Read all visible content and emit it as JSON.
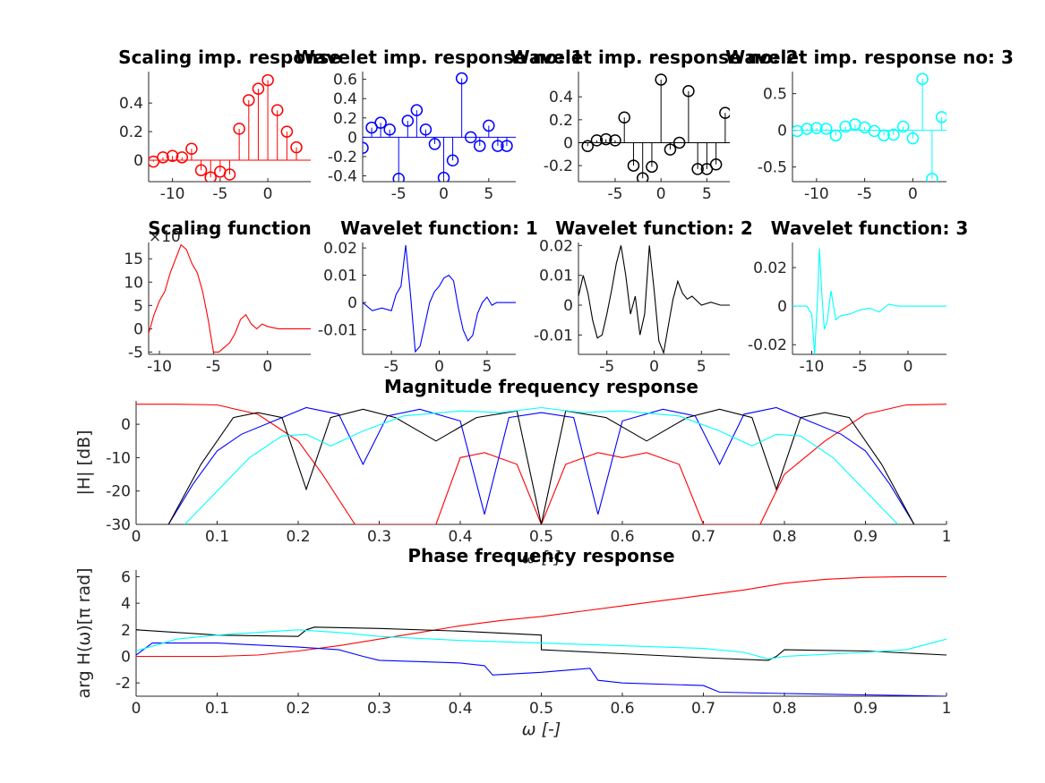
{
  "figure": {
    "background": "#ffffff",
    "colors": {
      "scaling": "#ff0000",
      "wavelet1": "#0000ff",
      "wavelet2": "#000000",
      "wavelet3": "#00ffff"
    }
  },
  "chart_data": [
    {
      "type": "stem",
      "title": "Scaling imp. response",
      "color": "#ff0000",
      "xlim": [
        -12.5,
        4.5
      ],
      "ylim": [
        -0.15,
        0.62
      ],
      "xticks": [
        -10,
        -5,
        0
      ],
      "xtick_labels": [
        "-10",
        "-5",
        "0"
      ],
      "yticks": [
        0,
        0.2,
        0.4
      ],
      "ytick_labels": [
        "0",
        "0.2",
        "0.4"
      ],
      "x": [
        -12,
        -11,
        -10,
        -9,
        -8,
        -7,
        -6,
        -5,
        -4,
        -3,
        -2,
        -1,
        0,
        1,
        2,
        3
      ],
      "y": [
        -0.01,
        0.02,
        0.03,
        0.02,
        0.08,
        -0.07,
        -0.12,
        -0.08,
        -0.1,
        0.22,
        0.42,
        0.5,
        0.56,
        0.35,
        0.2,
        0.09
      ]
    },
    {
      "type": "stem",
      "title": "Wavelet imp. response no: 1",
      "color": "#0000ff",
      "xlim": [
        -9,
        8
      ],
      "ylim": [
        -0.46,
        0.68
      ],
      "xticks": [
        -5,
        0,
        5
      ],
      "xtick_labels": [
        "-5",
        "0",
        "5"
      ],
      "yticks": [
        -0.4,
        -0.2,
        0,
        0.2,
        0.4,
        0.6
      ],
      "ytick_labels": [
        "-0.4",
        "-0.2",
        "0",
        "0.2",
        "0.4",
        "0.6"
      ],
      "x": [
        -9,
        -8,
        -7,
        -6,
        -5,
        -4,
        -3,
        -2,
        -1,
        0,
        1,
        2,
        3,
        4,
        5,
        6,
        7
      ],
      "y": [
        -0.11,
        0.1,
        0.15,
        0.08,
        -0.43,
        0.17,
        0.28,
        0.08,
        -0.07,
        -0.42,
        -0.24,
        0.61,
        0.0,
        -0.09,
        0.12,
        -0.09,
        -0.09
      ]
    },
    {
      "type": "stem",
      "title": "Wavelet imp. response no: 2",
      "color": "#000000",
      "xlim": [
        -9,
        7.5
      ],
      "ylim": [
        -0.34,
        0.62
      ],
      "xticks": [
        -5,
        0,
        5
      ],
      "xtick_labels": [
        "-5",
        "0",
        "5"
      ],
      "yticks": [
        -0.2,
        0,
        0.2,
        0.4
      ],
      "ytick_labels": [
        "-0.2",
        "0",
        "0.2",
        "0.4"
      ],
      "x": [
        -8,
        -7,
        -6,
        -5,
        -4,
        -3,
        -2,
        -1,
        0,
        1,
        2,
        3,
        4,
        5,
        6,
        7
      ],
      "y": [
        -0.03,
        0.02,
        0.03,
        0.02,
        0.22,
        -0.2,
        -0.31,
        -0.21,
        0.55,
        -0.06,
        0.0,
        0.45,
        -0.23,
        -0.23,
        -0.19,
        0.26
      ]
    },
    {
      "type": "stem",
      "title": "Wavelet imp. response no: 3",
      "color": "#00ffff",
      "xlim": [
        -12.5,
        3.5
      ],
      "ylim": [
        -0.7,
        0.8
      ],
      "xticks": [
        -10,
        -5,
        0
      ],
      "xtick_labels": [
        "-10",
        "-5",
        "0"
      ],
      "yticks": [
        -0.5,
        0,
        0.5
      ],
      "ytick_labels": [
        "-0.5",
        "0",
        "0.5"
      ],
      "x": [
        -12,
        -11,
        -10,
        -9,
        -8,
        -7,
        -6,
        -5,
        -4,
        -3,
        -2,
        -1,
        0,
        1,
        2,
        3
      ],
      "y": [
        -0.01,
        0.02,
        0.03,
        0.02,
        -0.07,
        0.05,
        0.08,
        0.04,
        -0.01,
        -0.07,
        -0.06,
        0.05,
        -0.11,
        0.7,
        -0.66,
        0.18
      ]
    },
    {
      "type": "line",
      "title": "Scaling function",
      "color": "#ff0000",
      "exponent_label": "×10",
      "exponent_power": "-3",
      "xlim": [
        -11,
        4
      ],
      "ylim": [
        -5.5,
        18.5
      ],
      "xticks": [
        -10,
        -5,
        0
      ],
      "xtick_labels": [
        "-10",
        "-5",
        "0"
      ],
      "yticks": [
        -5,
        0,
        5,
        10,
        15
      ],
      "ytick_labels": [
        "-5",
        "0",
        "5",
        "10",
        "15"
      ],
      "x": [
        -11,
        -10.5,
        -10,
        -9.5,
        -9,
        -8.5,
        -8,
        -7.5,
        -7,
        -6.5,
        -6,
        -5.5,
        -5,
        -4.5,
        -4,
        -3.5,
        -3,
        -2.5,
        -2,
        -1.5,
        -1,
        -0.5,
        0,
        1,
        2,
        3,
        4
      ],
      "y": [
        -1,
        3,
        6,
        8,
        12,
        15,
        18,
        17,
        14,
        12,
        8,
        2,
        -5,
        -5,
        -4,
        -3,
        -1,
        2,
        3,
        1,
        0,
        1,
        0.5,
        0,
        0,
        0,
        0
      ]
    },
    {
      "type": "line",
      "title": "Wavelet function: 1",
      "color": "#0000ff",
      "xlim": [
        -8,
        8
      ],
      "ylim": [
        -0.019,
        0.022
      ],
      "xticks": [
        -5,
        0,
        5
      ],
      "xtick_labels": [
        "-5",
        "0",
        "5"
      ],
      "yticks": [
        -0.01,
        0,
        0.01,
        0.02
      ],
      "ytick_labels": [
        "-0.01",
        "0",
        "0.01",
        "0.02"
      ],
      "x": [
        -8,
        -7,
        -6,
        -5,
        -4.5,
        -4,
        -3.5,
        -3,
        -2.5,
        -2,
        -1.5,
        -1,
        -0.5,
        0,
        0.5,
        1,
        1.5,
        2,
        2.5,
        3,
        3.5,
        4,
        4.5,
        5,
        5.5,
        6,
        7,
        8
      ],
      "y": [
        0,
        -0.003,
        -0.002,
        -0.003,
        0.003,
        0.006,
        0.021,
        0.003,
        -0.018,
        -0.016,
        -0.008,
        0,
        0.004,
        0.006,
        0.009,
        0.01,
        0.008,
        -0.002,
        -0.01,
        -0.014,
        -0.012,
        -0.004,
        0,
        0.002,
        -0.001,
        0,
        0,
        0
      ]
    },
    {
      "type": "line",
      "title": "Wavelet function: 2",
      "color": "#000000",
      "xlim": [
        -8,
        8
      ],
      "ylim": [
        -0.0165,
        0.021
      ],
      "xticks": [
        -5,
        0,
        5
      ],
      "xtick_labels": [
        "-5",
        "0",
        "5"
      ],
      "yticks": [
        -0.01,
        0,
        0.01,
        0.02
      ],
      "ytick_labels": [
        "-0.01",
        "0",
        "0.01",
        "0.02"
      ],
      "x": [
        -8,
        -7.5,
        -7,
        -6.5,
        -6,
        -5.5,
        -5,
        -4.5,
        -4,
        -3.5,
        -3,
        -2.5,
        -2,
        -1.5,
        -1,
        -0.5,
        0,
        0.5,
        1,
        1.5,
        2,
        2.5,
        3,
        3.5,
        4,
        5,
        6,
        7,
        8
      ],
      "y": [
        0.003,
        0.01,
        0.004,
        -0.005,
        -0.011,
        -0.01,
        -0.003,
        0.005,
        0.014,
        0.02,
        0.01,
        -0.003,
        0.003,
        -0.01,
        -0.003,
        0.02,
        0.005,
        -0.012,
        -0.016,
        -0.007,
        0.002,
        0.008,
        0.004,
        0.002,
        0.003,
        0,
        0.001,
        0,
        0
      ]
    },
    {
      "type": "line",
      "title": "Wavelet function: 3",
      "color": "#00ffff",
      "xlim": [
        -12,
        4
      ],
      "ylim": [
        -0.025,
        0.033
      ],
      "xticks": [
        -10,
        -5,
        0
      ],
      "xtick_labels": [
        "-10",
        "-5",
        "0"
      ],
      "yticks": [
        -0.02,
        0,
        0.02
      ],
      "ytick_labels": [
        "-0.02",
        "0",
        "0.02"
      ],
      "x": [
        -12,
        -11,
        -10.5,
        -10,
        -9.7,
        -9.4,
        -9.2,
        -9,
        -8.7,
        -8.4,
        -8,
        -7.5,
        -7,
        -6,
        -5,
        -4,
        -3,
        -2,
        -1,
        0,
        1,
        2,
        3,
        4
      ],
      "y": [
        0,
        0,
        0,
        -0.004,
        -0.025,
        0.004,
        0.03,
        0.01,
        -0.012,
        -0.008,
        0.008,
        -0.007,
        -0.005,
        -0.004,
        -0.002,
        -0.001,
        -0.003,
        0.001,
        0,
        0,
        0,
        0,
        0,
        0
      ]
    },
    {
      "type": "line",
      "title": "Magnitude frequency response",
      "xlabel": "ω [-]",
      "ylabel": "|H| [dB]",
      "xlim": [
        0,
        1
      ],
      "ylim": [
        -30,
        7
      ],
      "xticks": [
        0,
        0.1,
        0.2,
        0.3,
        0.4,
        0.5,
        0.6,
        0.7,
        0.8,
        0.9,
        1
      ],
      "xtick_labels": [
        "0",
        "0.1",
        "0.2",
        "0.3",
        "0.4",
        "0.5",
        "0.6",
        "0.7",
        "0.8",
        "0.9",
        "1"
      ],
      "yticks": [
        -30,
        -20,
        -10,
        0
      ],
      "ytick_labels": [
        "-30",
        "-20",
        "-10",
        "0"
      ],
      "series": [
        {
          "color": "#ff0000",
          "x": [
            0,
            0.05,
            0.1,
            0.15,
            0.2,
            0.23,
            0.27,
            0.3,
            0.33,
            0.37,
            0.4,
            0.43,
            0.47,
            0.5,
            0.53,
            0.57,
            0.6,
            0.63,
            0.67,
            0.7,
            0.73,
            0.77,
            0.8,
            0.85,
            0.9,
            0.95,
            1
          ],
          "y": [
            6,
            6,
            5.8,
            3,
            -5,
            -15,
            -30,
            -30,
            -30,
            -30,
            -10,
            -8.5,
            -12,
            -30,
            -12,
            -8.5,
            -10,
            -8.5,
            -12,
            -30,
            -30,
            -30,
            -15,
            -5,
            3,
            5.8,
            6
          ]
        },
        {
          "color": "#0000ff",
          "x": [
            0.04,
            0.07,
            0.1,
            0.13,
            0.17,
            0.21,
            0.25,
            0.28,
            0.31,
            0.35,
            0.4,
            0.43,
            0.46,
            0.5,
            0.54,
            0.57,
            0.6,
            0.65,
            0.69,
            0.72,
            0.75,
            0.79,
            0.83,
            0.87,
            0.9,
            0.93,
            0.96
          ],
          "y": [
            -30,
            -18,
            -8,
            -3,
            1,
            5,
            3,
            -12,
            2.5,
            4.5,
            1,
            -27,
            2,
            3.5,
            2,
            -27,
            1,
            4.5,
            2.5,
            -12,
            3,
            5,
            1,
            -3,
            -8,
            -18,
            -30
          ]
        },
        {
          "color": "#000000",
          "x": [
            0.04,
            0.08,
            0.12,
            0.15,
            0.18,
            0.21,
            0.24,
            0.28,
            0.32,
            0.37,
            0.42,
            0.47,
            0.5,
            0.53,
            0.58,
            0.63,
            0.68,
            0.72,
            0.76,
            0.79,
            0.82,
            0.85,
            0.88,
            0.92,
            0.96
          ],
          "y": [
            -30,
            -12,
            2,
            3.5,
            2,
            -19.5,
            2,
            4.5,
            2,
            -5,
            2,
            4,
            -30,
            4,
            2,
            -5,
            2,
            4.5,
            2,
            -19.5,
            2,
            3.5,
            2,
            -12,
            -30
          ]
        },
        {
          "color": "#00ffff",
          "x": [
            0.06,
            0.1,
            0.14,
            0.18,
            0.21,
            0.24,
            0.28,
            0.33,
            0.4,
            0.45,
            0.5,
            0.55,
            0.6,
            0.67,
            0.72,
            0.76,
            0.79,
            0.82,
            0.86,
            0.9,
            0.94
          ],
          "y": [
            -30,
            -20,
            -10,
            -3.5,
            -3,
            -6.5,
            -2,
            2.5,
            4,
            3.5,
            5,
            3.5,
            4,
            2.5,
            -2,
            -6.5,
            -3,
            -3.5,
            -10,
            -20,
            -30
          ]
        }
      ]
    },
    {
      "type": "line",
      "title": "Phase frequency response",
      "xlabel": "ω [-]",
      "ylabel": "arg H(ω)[π rad]",
      "xlim": [
        0,
        1
      ],
      "ylim": [
        -3,
        6.5
      ],
      "xticks": [
        0,
        0.1,
        0.2,
        0.3,
        0.4,
        0.5,
        0.6,
        0.7,
        0.8,
        0.9,
        1
      ],
      "xtick_labels": [
        "0",
        "0.1",
        "0.2",
        "0.3",
        "0.4",
        "0.5",
        "0.6",
        "0.7",
        "0.8",
        "0.9",
        "1"
      ],
      "yticks": [
        -2,
        0,
        2,
        4,
        6
      ],
      "ytick_labels": [
        "-2",
        "0",
        "2",
        "4",
        "6"
      ],
      "series": [
        {
          "color": "#ff0000",
          "x": [
            0,
            0.1,
            0.15,
            0.2,
            0.25,
            0.3,
            0.35,
            0.4,
            0.45,
            0.5,
            0.55,
            0.6,
            0.65,
            0.7,
            0.75,
            0.8,
            0.85,
            0.9,
            0.95,
            1
          ],
          "y": [
            0,
            0,
            0.1,
            0.4,
            0.8,
            1.3,
            1.8,
            2.3,
            2.7,
            3,
            3.4,
            3.8,
            4.2,
            4.6,
            5,
            5.5,
            5.8,
            5.95,
            6,
            6
          ]
        },
        {
          "color": "#000000",
          "x": [
            0,
            0.1,
            0.2,
            0.21,
            0.22,
            0.3,
            0.4,
            0.5,
            0.5,
            0.6,
            0.7,
            0.78,
            0.79,
            0.8,
            0.9,
            1
          ],
          "y": [
            2,
            1.6,
            1.5,
            2,
            2.2,
            2.1,
            1.9,
            1.6,
            0.5,
            0.2,
            -0.1,
            -0.3,
            0,
            0.5,
            0.4,
            0.1
          ]
        },
        {
          "color": "#0000ff",
          "x": [
            0,
            0.02,
            0.1,
            0.2,
            0.25,
            0.28,
            0.3,
            0.4,
            0.43,
            0.44,
            0.5,
            0.56,
            0.57,
            0.6,
            0.7,
            0.72,
            0.8,
            0.9,
            1
          ],
          "y": [
            0.1,
            1,
            1,
            0.7,
            0.5,
            0,
            -0.3,
            -0.5,
            -0.7,
            -1.4,
            -1.2,
            -0.9,
            -1.8,
            -2,
            -2.2,
            -2.7,
            -2.8,
            -2.9,
            -3
          ]
        },
        {
          "color": "#00ffff",
          "x": [
            0,
            0.05,
            0.1,
            0.2,
            0.25,
            0.3,
            0.4,
            0.5,
            0.6,
            0.7,
            0.75,
            0.78,
            0.8,
            0.9,
            0.95,
            1
          ],
          "y": [
            0.4,
            1.3,
            1.6,
            2,
            1.8,
            1.5,
            1.2,
            1,
            0.8,
            0.6,
            0.3,
            -0.2,
            0,
            0.3,
            0.5,
            1.3
          ]
        }
      ]
    }
  ]
}
